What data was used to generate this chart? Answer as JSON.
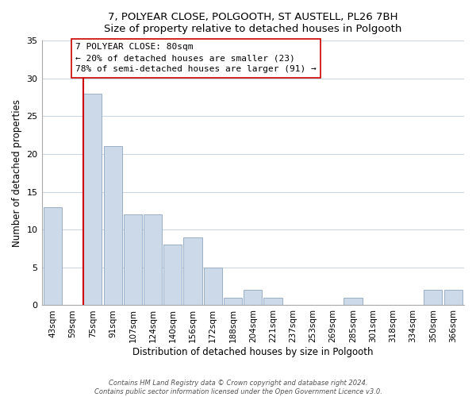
{
  "title": "7, POLYEAR CLOSE, POLGOOTH, ST AUSTELL, PL26 7BH",
  "subtitle": "Size of property relative to detached houses in Polgooth",
  "xlabel": "Distribution of detached houses by size in Polgooth",
  "ylabel": "Number of detached properties",
  "categories": [
    "43sqm",
    "59sqm",
    "75sqm",
    "91sqm",
    "107sqm",
    "124sqm",
    "140sqm",
    "156sqm",
    "172sqm",
    "188sqm",
    "204sqm",
    "221sqm",
    "237sqm",
    "253sqm",
    "269sqm",
    "285sqm",
    "301sqm",
    "318sqm",
    "334sqm",
    "350sqm",
    "366sqm"
  ],
  "values": [
    13,
    0,
    28,
    21,
    12,
    12,
    8,
    9,
    5,
    1,
    2,
    1,
    0,
    0,
    0,
    1,
    0,
    0,
    0,
    2,
    2
  ],
  "bar_color": "#ccd9e8",
  "bar_edge_color": "#9ab0c8",
  "vline_color": "#cc0000",
  "annotation_text": "7 POLYEAR CLOSE: 80sqm\n← 20% of detached houses are smaller (23)\n78% of semi-detached houses are larger (91) →",
  "annotation_box_color": "#ffffff",
  "annotation_box_edge": "#cc0000",
  "ylim": [
    0,
    35
  ],
  "yticks": [
    0,
    5,
    10,
    15,
    20,
    25,
    30,
    35
  ],
  "footer1": "Contains HM Land Registry data © Crown copyright and database right 2024.",
  "footer2": "Contains public sector information licensed under the Open Government Licence v3.0.",
  "background_color": "#ffffff",
  "grid_color": "#ccd8e4",
  "title_fontsize": 9.5,
  "axis_label_fontsize": 8.5,
  "tick_fontsize": 8.0,
  "annot_fontsize": 8.0
}
